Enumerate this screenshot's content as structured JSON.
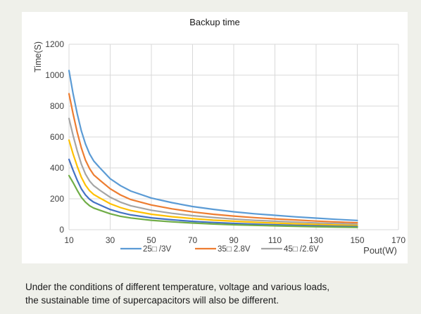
{
  "chart_data": {
    "type": "line",
    "title": "Backup time",
    "xlabel": "Pout(W)",
    "ylabel": "Time(S)",
    "xlim": [
      10,
      170
    ],
    "ylim": [
      0,
      1200
    ],
    "xticks": [
      10,
      30,
      50,
      70,
      90,
      110,
      130,
      150,
      170
    ],
    "yticks": [
      0,
      200,
      400,
      600,
      800,
      1000,
      1200
    ],
    "grid": true,
    "legend_position": "bottom",
    "x": [
      10,
      12,
      14,
      16,
      18,
      20,
      22,
      25,
      30,
      35,
      40,
      50,
      60,
      70,
      80,
      90,
      100,
      110,
      120,
      130,
      140,
      150
    ],
    "series": [
      {
        "name": "25□ /3V",
        "color": "#5b9bd5",
        "values": [
          1030,
          880,
          750,
          640,
          555,
          490,
          445,
          400,
          330,
          285,
          250,
          205,
          175,
          150,
          132,
          116,
          103,
          93,
          83,
          75,
          67,
          60
        ]
      },
      {
        "name": "35□ 2.8V",
        "color": "#ed7d31",
        "values": [
          880,
          750,
          630,
          530,
          450,
          395,
          355,
          320,
          265,
          225,
          195,
          160,
          135,
          115,
          100,
          88,
          78,
          70,
          63,
          56,
          50,
          45
        ]
      },
      {
        "name": "45□ /2.6V",
        "color": "#a5a5a5",
        "values": [
          720,
          610,
          510,
          425,
          360,
          315,
          285,
          255,
          210,
          178,
          155,
          126,
          106,
          91,
          79,
          69,
          61,
          55,
          49,
          44,
          39,
          35
        ]
      },
      {
        "name": "",
        "color": "#ffc000",
        "values": [
          580,
          490,
          410,
          340,
          288,
          252,
          228,
          205,
          168,
          143,
          124,
          100,
          84,
          72,
          62,
          55,
          48,
          43,
          38,
          34,
          30,
          27
        ]
      },
      {
        "name": "",
        "color": "#4472c4",
        "values": [
          455,
          385,
          320,
          265,
          225,
          197,
          178,
          160,
          131,
          111,
          96,
          77,
          64,
          54,
          47,
          41,
          36,
          32,
          28,
          25,
          22,
          20
        ]
      },
      {
        "name": "",
        "color": "#70ad47",
        "values": [
          350,
          305,
          255,
          210,
          178,
          155,
          140,
          126,
          103,
          87,
          76,
          61,
          51,
          43,
          37,
          32,
          28,
          25,
          22,
          19,
          17,
          15
        ]
      }
    ]
  },
  "caption": {
    "line1": "Under the conditions of different temperature, voltage and various loads,",
    "line2": "the sustainable time of supercapacitors will also be different."
  }
}
